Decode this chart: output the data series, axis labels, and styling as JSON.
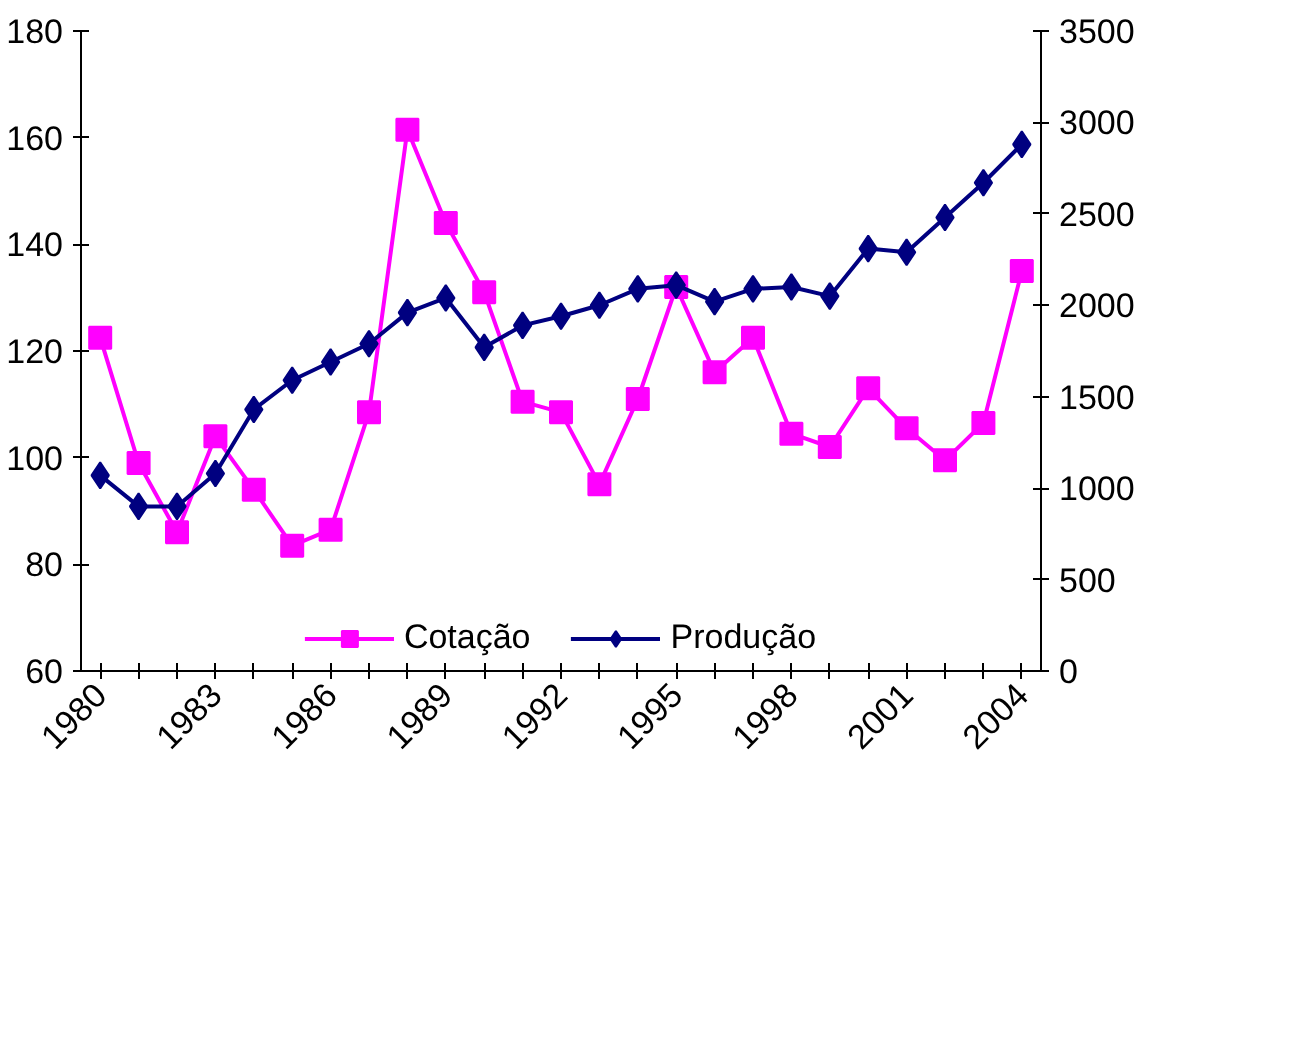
{
  "chart_data": {
    "type": "line",
    "categories": [
      "1980",
      null,
      null,
      "1983",
      null,
      null,
      "1986",
      null,
      null,
      "1989",
      null,
      null,
      "1992",
      null,
      null,
      "1995",
      null,
      null,
      "1998",
      null,
      null,
      "2001",
      null,
      null,
      "2004"
    ],
    "series": [
      {
        "name": "Cotação",
        "color": "#ff00ff",
        "marker": "square",
        "values": [
          122.5,
          99,
          86,
          104,
          94,
          83.5,
          86.5,
          108.5,
          161.5,
          144,
          131,
          110.5,
          108.5,
          95,
          111,
          132,
          116,
          122.5,
          104.5,
          102,
          113,
          105.5,
          99.5,
          106.5,
          135
        ]
      },
      {
        "name": "Produção",
        "color": "#000080",
        "marker": "diamond",
        "axis": "y2",
        "values": [
          1070,
          900,
          900,
          1080,
          1430,
          1590,
          1690,
          1790,
          1960,
          2040,
          1770,
          1890,
          1940,
          2000,
          2090,
          2110,
          2020,
          2090,
          2100,
          2050,
          2310,
          2290,
          2480,
          2670,
          2880
        ]
      }
    ],
    "ylim": [
      60,
      180
    ],
    "yticks": [
      60,
      80,
      100,
      120,
      140,
      160,
      180
    ],
    "y2lim": [
      0,
      3500
    ],
    "y2ticks": [
      0,
      500,
      1000,
      1500,
      2000,
      2500,
      3000,
      3500
    ],
    "grid": false,
    "legend": "bottom"
  }
}
